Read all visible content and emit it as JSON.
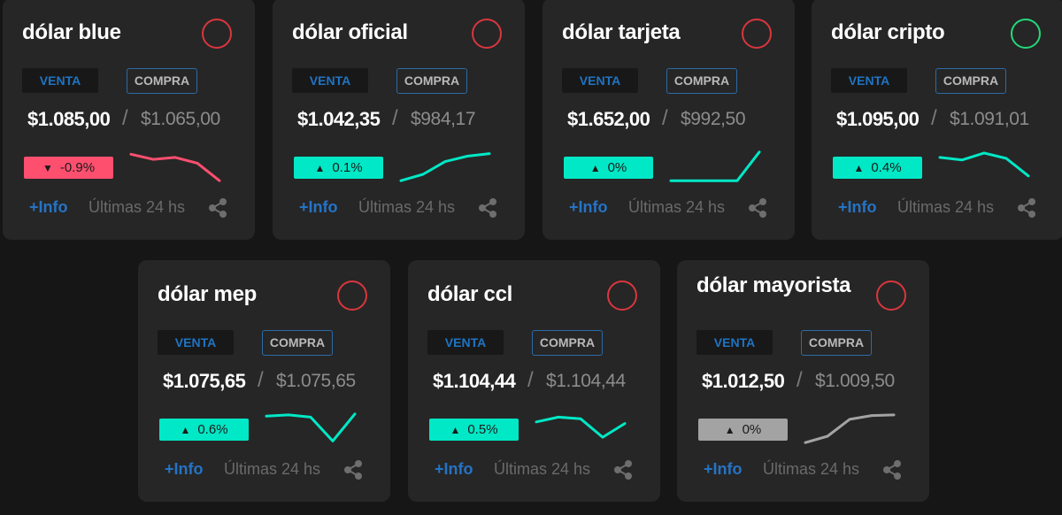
{
  "colors": {
    "background": "#161616",
    "card": "#262626",
    "down": "#ff4f6f",
    "up": "#00e8c6",
    "flat": "#a3a3a3",
    "link": "#2573c5",
    "status_down": "#d9363e",
    "status_up": "#23d87a"
  },
  "cards": [
    {
      "title": "dólar blue",
      "status": "down",
      "venta_label": "VENTA",
      "compra_label": "COMPRA",
      "venta_price": "$1.085,00",
      "separator": "/",
      "compra_price": "$1.065,00",
      "change": "-0.9%",
      "trend": "down",
      "sparkline": [
        0.88,
        0.72,
        0.78,
        0.6,
        0.05
      ],
      "info_label": "+Info",
      "period_label": "Últimas 24 hs",
      "share_icon": "share-icon"
    },
    {
      "title": "dólar oficial",
      "status": "down",
      "venta_label": "VENTA",
      "compra_label": "COMPRA",
      "venta_price": "$1.042,35",
      "separator": "/",
      "compra_price": "$984,17",
      "change": "0.1%",
      "trend": "up",
      "sparkline": [
        0.05,
        0.25,
        0.65,
        0.82,
        0.9
      ],
      "info_label": "+Info",
      "period_label": "Últimas 24 hs",
      "share_icon": "share-icon"
    },
    {
      "title": "dólar tarjeta",
      "status": "down",
      "venta_label": "VENTA",
      "compra_label": "COMPRA",
      "venta_price": "$1.652,00",
      "separator": "/",
      "compra_price": "$992,50",
      "change": "0%",
      "trend": "up",
      "sparkline": [
        0.05,
        0.05,
        0.05,
        0.05,
        0.95
      ],
      "info_label": "+Info",
      "period_label": "Últimas 24 hs",
      "share_icon": "share-icon"
    },
    {
      "title": "dólar cripto",
      "status": "up",
      "venta_label": "VENTA",
      "compra_label": "COMPRA",
      "venta_price": "$1.095,00",
      "separator": "/",
      "compra_price": "$1.091,01",
      "change": "0.4%",
      "trend": "up",
      "sparkline": [
        0.78,
        0.7,
        0.92,
        0.75,
        0.2
      ],
      "info_label": "+Info",
      "period_label": "Últimas 24 hs",
      "share_icon": "share-icon"
    },
    {
      "title": "dólar mep",
      "status": "down",
      "venta_label": "VENTA",
      "compra_label": "COMPRA",
      "venta_price": "$1.075,65",
      "separator": "/",
      "compra_price": "$1.075,65",
      "change": "0.6%",
      "trend": "up",
      "sparkline": [
        0.88,
        0.92,
        0.85,
        0.1,
        0.95
      ],
      "info_label": "+Info",
      "period_label": "Últimas 24 hs",
      "share_icon": "share-icon"
    },
    {
      "title": "dólar ccl",
      "status": "down",
      "venta_label": "VENTA",
      "compra_label": "COMPRA",
      "venta_price": "$1.104,44",
      "separator": "/",
      "compra_price": "$1.104,44",
      "change": "0.5%",
      "trend": "up",
      "sparkline": [
        0.7,
        0.85,
        0.8,
        0.22,
        0.65
      ],
      "info_label": "+Info",
      "period_label": "Últimas 24 hs",
      "share_icon": "share-icon"
    },
    {
      "title": "dólar mayorista",
      "status": "down",
      "venta_label": "VENTA",
      "compra_label": "COMPRA",
      "venta_price": "$1.012,50",
      "separator": "/",
      "compra_price": "$1.009,50",
      "change": "0%",
      "trend": "flat",
      "sparkline": [
        0.05,
        0.25,
        0.78,
        0.9,
        0.92
      ],
      "info_label": "+Info",
      "period_label": "Últimas 24 hs",
      "share_icon": "share-icon"
    }
  ]
}
